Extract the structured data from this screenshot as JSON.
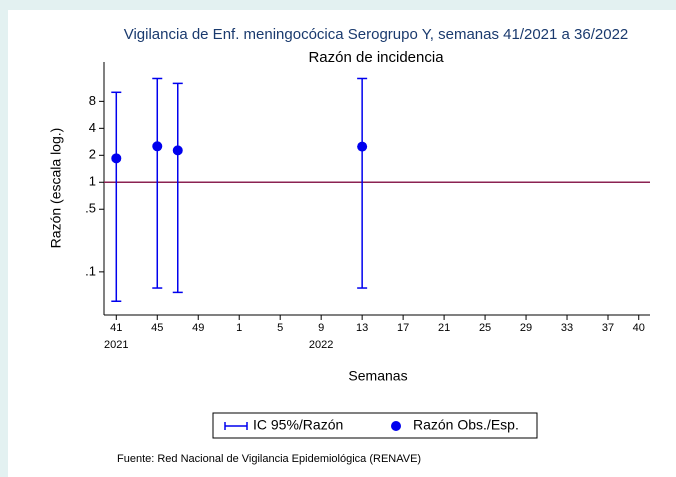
{
  "chart_data": {
    "type": "errorbar-scatter",
    "title": "Vigilancia de Enf. meningocócica Serogrupo Y, semanas 41/2021 a 36/2022",
    "subtitle": "Razón de incidencia",
    "y_label": "Razón (escala log.)",
    "x_label": "Semanas",
    "note": "Fuente: Red Nacional de Vigilancia Epidemiológica (RENAVE)",
    "y_log": true,
    "x": [
      41,
      45,
      47,
      65
    ],
    "series": [
      {
        "name": "IC 95%/Razón",
        "kind": "errorbar",
        "color": "#0000ee",
        "low": [
          0.047,
          0.066,
          0.059,
          0.066
        ],
        "high": [
          10.1,
          14.4,
          12.7,
          14.4
        ]
      },
      {
        "name": "Razón Obs./Esp.",
        "kind": "point",
        "color": "#0000ee",
        "values": [
          1.85,
          2.52,
          2.27,
          2.5
        ]
      }
    ],
    "reference_line": {
      "value": 1,
      "color": "#8b2252"
    },
    "xlim": [
      39.8,
      93.1
    ],
    "ylim": [
      0.033,
      22
    ],
    "yticks": [
      8,
      4,
      2,
      1,
      {
        "value": 0.5,
        "label": ".5"
      },
      {
        "value": 0.1,
        "label": ".1"
      }
    ],
    "xticks": [
      {
        "value": 41,
        "label": "41"
      },
      {
        "value": 45,
        "label": "45"
      },
      {
        "value": 49,
        "label": "49"
      },
      {
        "value": 53,
        "label": "1"
      },
      {
        "value": 57,
        "label": "5"
      },
      {
        "value": 61,
        "label": "9"
      },
      {
        "value": 65,
        "label": "13"
      },
      {
        "value": 69,
        "label": "17"
      },
      {
        "value": 73,
        "label": "21"
      },
      {
        "value": 77,
        "label": "25"
      },
      {
        "value": 81,
        "label": "29"
      },
      {
        "value": 85,
        "label": "33"
      },
      {
        "value": 89,
        "label": "37"
      },
      {
        "value": 92,
        "label": "40"
      }
    ],
    "xticks_year": [
      {
        "value": 41,
        "label": "2021"
      },
      {
        "value": 61,
        "label": "2022"
      }
    ]
  }
}
